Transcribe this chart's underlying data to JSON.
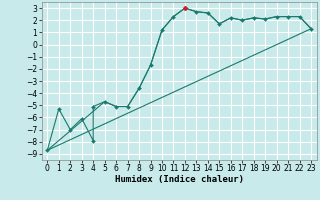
{
  "background_color": "#c8eaea",
  "grid_color": "#ffffff",
  "line_color": "#1a7a6e",
  "marker_color": "#1a7a6e",
  "red_marker_color": "#cc2222",
  "xlabel": "Humidex (Indice chaleur)",
  "xlim": [
    -0.5,
    23.5
  ],
  "ylim": [
    -9.5,
    3.5
  ],
  "xticks": [
    0,
    1,
    2,
    3,
    4,
    5,
    6,
    7,
    8,
    9,
    10,
    11,
    12,
    13,
    14,
    15,
    16,
    17,
    18,
    19,
    20,
    21,
    22,
    23
  ],
  "yticks": [
    -9,
    -8,
    -7,
    -6,
    -5,
    -4,
    -3,
    -2,
    -1,
    0,
    1,
    2,
    3
  ],
  "curve1_x": [
    0,
    1,
    2,
    3,
    4,
    4,
    5,
    6,
    7,
    8,
    9,
    10,
    11,
    12,
    13,
    14,
    15,
    16,
    17,
    18,
    19,
    20,
    21,
    22,
    23
  ],
  "curve1_y": [
    -8.7,
    -5.3,
    -7.0,
    -6.1,
    -7.9,
    -5.1,
    -4.7,
    -5.1,
    -5.1,
    -3.6,
    -1.7,
    1.2,
    2.3,
    3.0,
    2.7,
    2.6,
    1.7,
    2.2,
    2.0,
    2.2,
    2.1,
    2.3,
    2.3,
    2.3,
    1.3
  ],
  "curve2_x": [
    0,
    23
  ],
  "curve2_y": [
    -8.7,
    1.3
  ],
  "curve3_x": [
    0,
    5,
    6,
    7,
    8,
    9,
    10,
    11,
    12,
    13,
    14,
    15,
    16,
    17,
    18,
    19,
    20,
    21,
    22,
    23
  ],
  "curve3_y": [
    -8.7,
    -4.7,
    -5.1,
    -5.1,
    -3.6,
    -1.7,
    1.2,
    2.3,
    3.0,
    2.7,
    2.6,
    1.7,
    2.2,
    2.0,
    2.2,
    2.1,
    2.3,
    2.3,
    2.3,
    1.3
  ],
  "tick_fontsize": 5.5,
  "label_fontsize": 6.5,
  "special_marker_x": 12,
  "special_marker_y": 3.0
}
